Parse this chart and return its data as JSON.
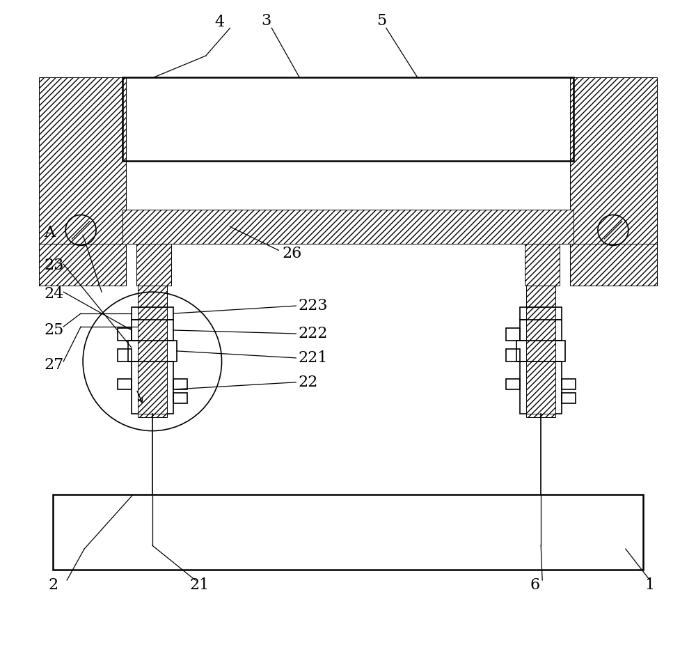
{
  "bg_color": "#ffffff",
  "line_color": "#000000",
  "fig_width": 10.0,
  "fig_height": 9.49,
  "lw": 1.2,
  "lw_thick": 1.8,
  "lw_thin": 0.7,
  "fs": 14
}
